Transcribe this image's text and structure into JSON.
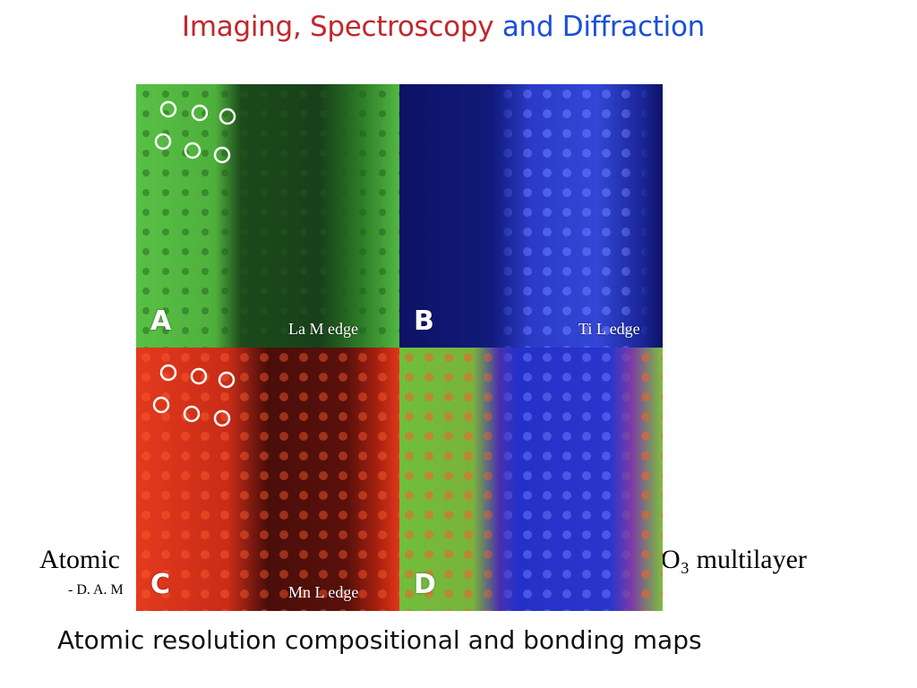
{
  "slide": {
    "title_part1": "Imaging,",
    "title_part2": "Spectroscopy",
    "title_part3": "and Diffraction",
    "caption_left": "Atomic",
    "caption_right": "O₃ multilayer",
    "author_partial": "- D. A. M",
    "bottom_caption": "Atomic resolution compositional and bonding maps",
    "colors": {
      "title_red": "#c1272d",
      "title_blue": "#1c4fd8"
    }
  },
  "panels": [
    {
      "letter": "A",
      "edge": "La M edge"
    },
    {
      "letter": "B",
      "edge": "Ti L edge"
    },
    {
      "letter": "C",
      "edge": "Mn L edge"
    },
    {
      "letter": "D",
      "edge": ""
    }
  ]
}
